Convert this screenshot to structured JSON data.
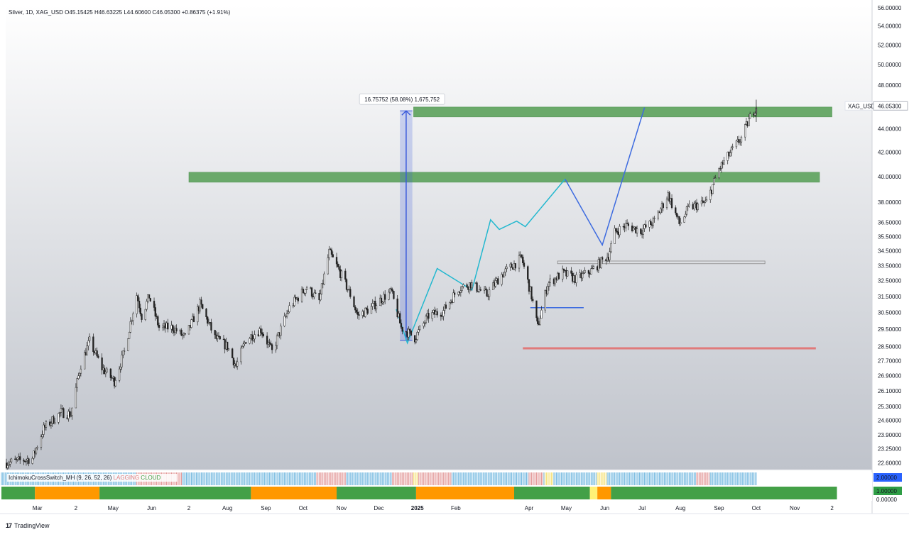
{
  "header": {
    "symbol": "Silver, 1D, XAG_USD",
    "open": "O45.15425",
    "high": "H46.63225",
    "low": "L44.60600",
    "close": "C46.05300",
    "change": "+0.86375 (+1.91%)"
  },
  "price_tag": {
    "symbol": "XAG_USD",
    "value": "46.05300"
  },
  "measure_label": "16.75752 (58.08%) 1,675,752",
  "indicator": {
    "name": "IchimokuCrossSwitch_MH (9, 26, 52, 26)",
    "tags": [
      "LAGGING",
      "CLOUD"
    ],
    "scale": [
      "2.00000",
      "1.00000",
      "0.00000"
    ]
  },
  "brand": {
    "logo": "17",
    "name": "TradingView"
  },
  "colors": {
    "zone": "#6aa96a",
    "measure": "#3b5bdb",
    "cyan": "#22b8cf",
    "blue": "#3d6be0",
    "red": "#e07a7a",
    "green": "#43a047",
    "orange": "#ff9800",
    "yellow": "#fff176"
  },
  "chart_data": {
    "type": "candlestick",
    "series_name": "XAG_USD",
    "x_axis": {
      "type": "date",
      "tick_labels": [
        {
          "label": "Mar",
          "date": "2024-03-01"
        },
        {
          "label": "2",
          "date": "2024-04-01"
        },
        {
          "label": "May",
          "date": "2024-05-01"
        },
        {
          "label": "Jun",
          "date": "2024-06-01"
        },
        {
          "label": "2",
          "date": "2024-07-01"
        },
        {
          "label": "Aug",
          "date": "2024-08-01"
        },
        {
          "label": "Sep",
          "date": "2024-09-01"
        },
        {
          "label": "Oct",
          "date": "2024-10-01"
        },
        {
          "label": "Nov",
          "date": "2024-11-01"
        },
        {
          "label": "Dec",
          "date": "2024-12-01"
        },
        {
          "label": "2025",
          "date": "2025-01-01"
        },
        {
          "label": "Feb",
          "date": "2025-02-01"
        },
        {
          "label": "Apr",
          "date": "2025-04-01"
        },
        {
          "label": "May",
          "date": "2025-05-01"
        },
        {
          "label": "Jun",
          "date": "2025-06-01"
        },
        {
          "label": "Jul",
          "date": "2025-07-01"
        },
        {
          "label": "Aug",
          "date": "2025-08-01"
        },
        {
          "label": "Sep",
          "date": "2025-09-01"
        },
        {
          "label": "Oct",
          "date": "2025-10-01"
        },
        {
          "label": "Nov",
          "date": "2025-11-01"
        },
        {
          "label": "2",
          "date": "2025-12-01"
        }
      ],
      "range": [
        "2024-02-01",
        "2025-12-31"
      ]
    },
    "y_axis": {
      "scale": "log",
      "range": [
        22.3,
        56.4
      ],
      "tick_labels": [
        "56.00000",
        "54.00000",
        "52.00000",
        "50.00000",
        "48.00000",
        "46.05300",
        "44.00000",
        "42.00000",
        "40.00000",
        "38.00000",
        "36.50000",
        "35.50000",
        "34.50000",
        "33.50000",
        "32.50000",
        "31.50000",
        "30.50000",
        "29.50000",
        "28.50000",
        "27.70000",
        "26.90000",
        "26.10000",
        "25.30000",
        "24.60000",
        "23.90000",
        "23.25000",
        "22.60000"
      ]
    },
    "price_path": [
      [
        "2024-02-05",
        22.6
      ],
      [
        "2024-02-26",
        22.8
      ],
      [
        "2024-03-06",
        24.2
      ],
      [
        "2024-03-20",
        25.0
      ],
      [
        "2024-03-28",
        24.9
      ],
      [
        "2024-04-05",
        27.5
      ],
      [
        "2024-04-12",
        28.8
      ],
      [
        "2024-04-22",
        27.3
      ],
      [
        "2024-05-02",
        26.6
      ],
      [
        "2024-05-10",
        28.2
      ],
      [
        "2024-05-20",
        31.6
      ],
      [
        "2024-05-24",
        30.3
      ],
      [
        "2024-05-30",
        31.5
      ],
      [
        "2024-06-07",
        29.6
      ],
      [
        "2024-06-18",
        29.6
      ],
      [
        "2024-06-28",
        29.0
      ],
      [
        "2024-07-10",
        31.0
      ],
      [
        "2024-07-22",
        29.0
      ],
      [
        "2024-08-01",
        28.5
      ],
      [
        "2024-08-08",
        27.4
      ],
      [
        "2024-08-16",
        28.9
      ],
      [
        "2024-08-28",
        29.5
      ],
      [
        "2024-09-06",
        28.2
      ],
      [
        "2024-09-20",
        30.8
      ],
      [
        "2024-10-04",
        32.1
      ],
      [
        "2024-10-14",
        31.2
      ],
      [
        "2024-10-22",
        34.4
      ],
      [
        "2024-10-31",
        33.0
      ],
      [
        "2024-11-08",
        31.6
      ],
      [
        "2024-11-14",
        30.3
      ],
      [
        "2024-11-25",
        30.8
      ],
      [
        "2024-12-04",
        31.4
      ],
      [
        "2024-12-11",
        31.8
      ],
      [
        "2024-12-19",
        29.6
      ],
      [
        "2024-12-30",
        29.0
      ],
      [
        "2025-01-10",
        30.3
      ],
      [
        "2025-01-22",
        30.6
      ],
      [
        "2025-02-03",
        32.0
      ],
      [
        "2025-02-13",
        32.3
      ],
      [
        "2025-02-26",
        31.6
      ],
      [
        "2025-03-10",
        32.9
      ],
      [
        "2025-03-26",
        34.0
      ],
      [
        "2025-04-03",
        31.5
      ],
      [
        "2025-04-08",
        29.6
      ],
      [
        "2025-04-16",
        32.3
      ],
      [
        "2025-04-28",
        33.0
      ],
      [
        "2025-05-09",
        32.6
      ],
      [
        "2025-05-22",
        33.2
      ],
      [
        "2025-06-04",
        34.2
      ],
      [
        "2025-06-09",
        35.8
      ],
      [
        "2025-06-18",
        36.3
      ],
      [
        "2025-06-30",
        35.9
      ],
      [
        "2025-07-11",
        36.6
      ],
      [
        "2025-07-22",
        38.6
      ],
      [
        "2025-07-31",
        36.4
      ],
      [
        "2025-08-08",
        37.6
      ],
      [
        "2025-08-22",
        38.0
      ],
      [
        "2025-09-01",
        40.6
      ],
      [
        "2025-09-12",
        42.2
      ],
      [
        "2025-09-19",
        43.2
      ],
      [
        "2025-09-26",
        45.0
      ],
      [
        "2025-10-01",
        46.05
      ]
    ],
    "annotations": {
      "resistance_zones": [
        {
          "from": "2024-07-01",
          "to": "2025-11-21",
          "low": 39.55,
          "high": 40.35
        },
        {
          "from": "2024-12-29",
          "to": "2025-12-01",
          "low": 45.05,
          "high": 45.95
        }
      ],
      "support_line": {
        "from": "2025-03-27",
        "to": "2025-11-18",
        "price": 28.4
      },
      "short_line": {
        "from": "2025-04-02",
        "to": "2025-05-15",
        "price": 30.8
      },
      "box": {
        "from": "2025-04-24",
        "to": "2025-10-08",
        "low": 33.62,
        "high": 33.8
      },
      "measure": {
        "from": "2024-12-18",
        "to": "2024-12-28",
        "low": 28.85,
        "high": 45.6
      },
      "cyan_projection": [
        [
          "2024-12-15",
          30.7
        ],
        [
          "2024-12-24",
          28.7
        ],
        [
          "2025-01-17",
          33.3
        ],
        [
          "2025-02-14",
          31.9
        ],
        [
          "2025-03-01",
          36.7
        ],
        [
          "2025-03-08",
          36.0
        ],
        [
          "2025-03-22",
          36.6
        ],
        [
          "2025-03-29",
          36.2
        ],
        [
          "2025-04-30",
          39.8
        ]
      ],
      "blue_projection": [
        [
          "2025-04-30",
          39.8
        ],
        [
          "2025-05-30",
          34.9
        ],
        [
          "2025-07-03",
          45.9
        ]
      ]
    }
  }
}
